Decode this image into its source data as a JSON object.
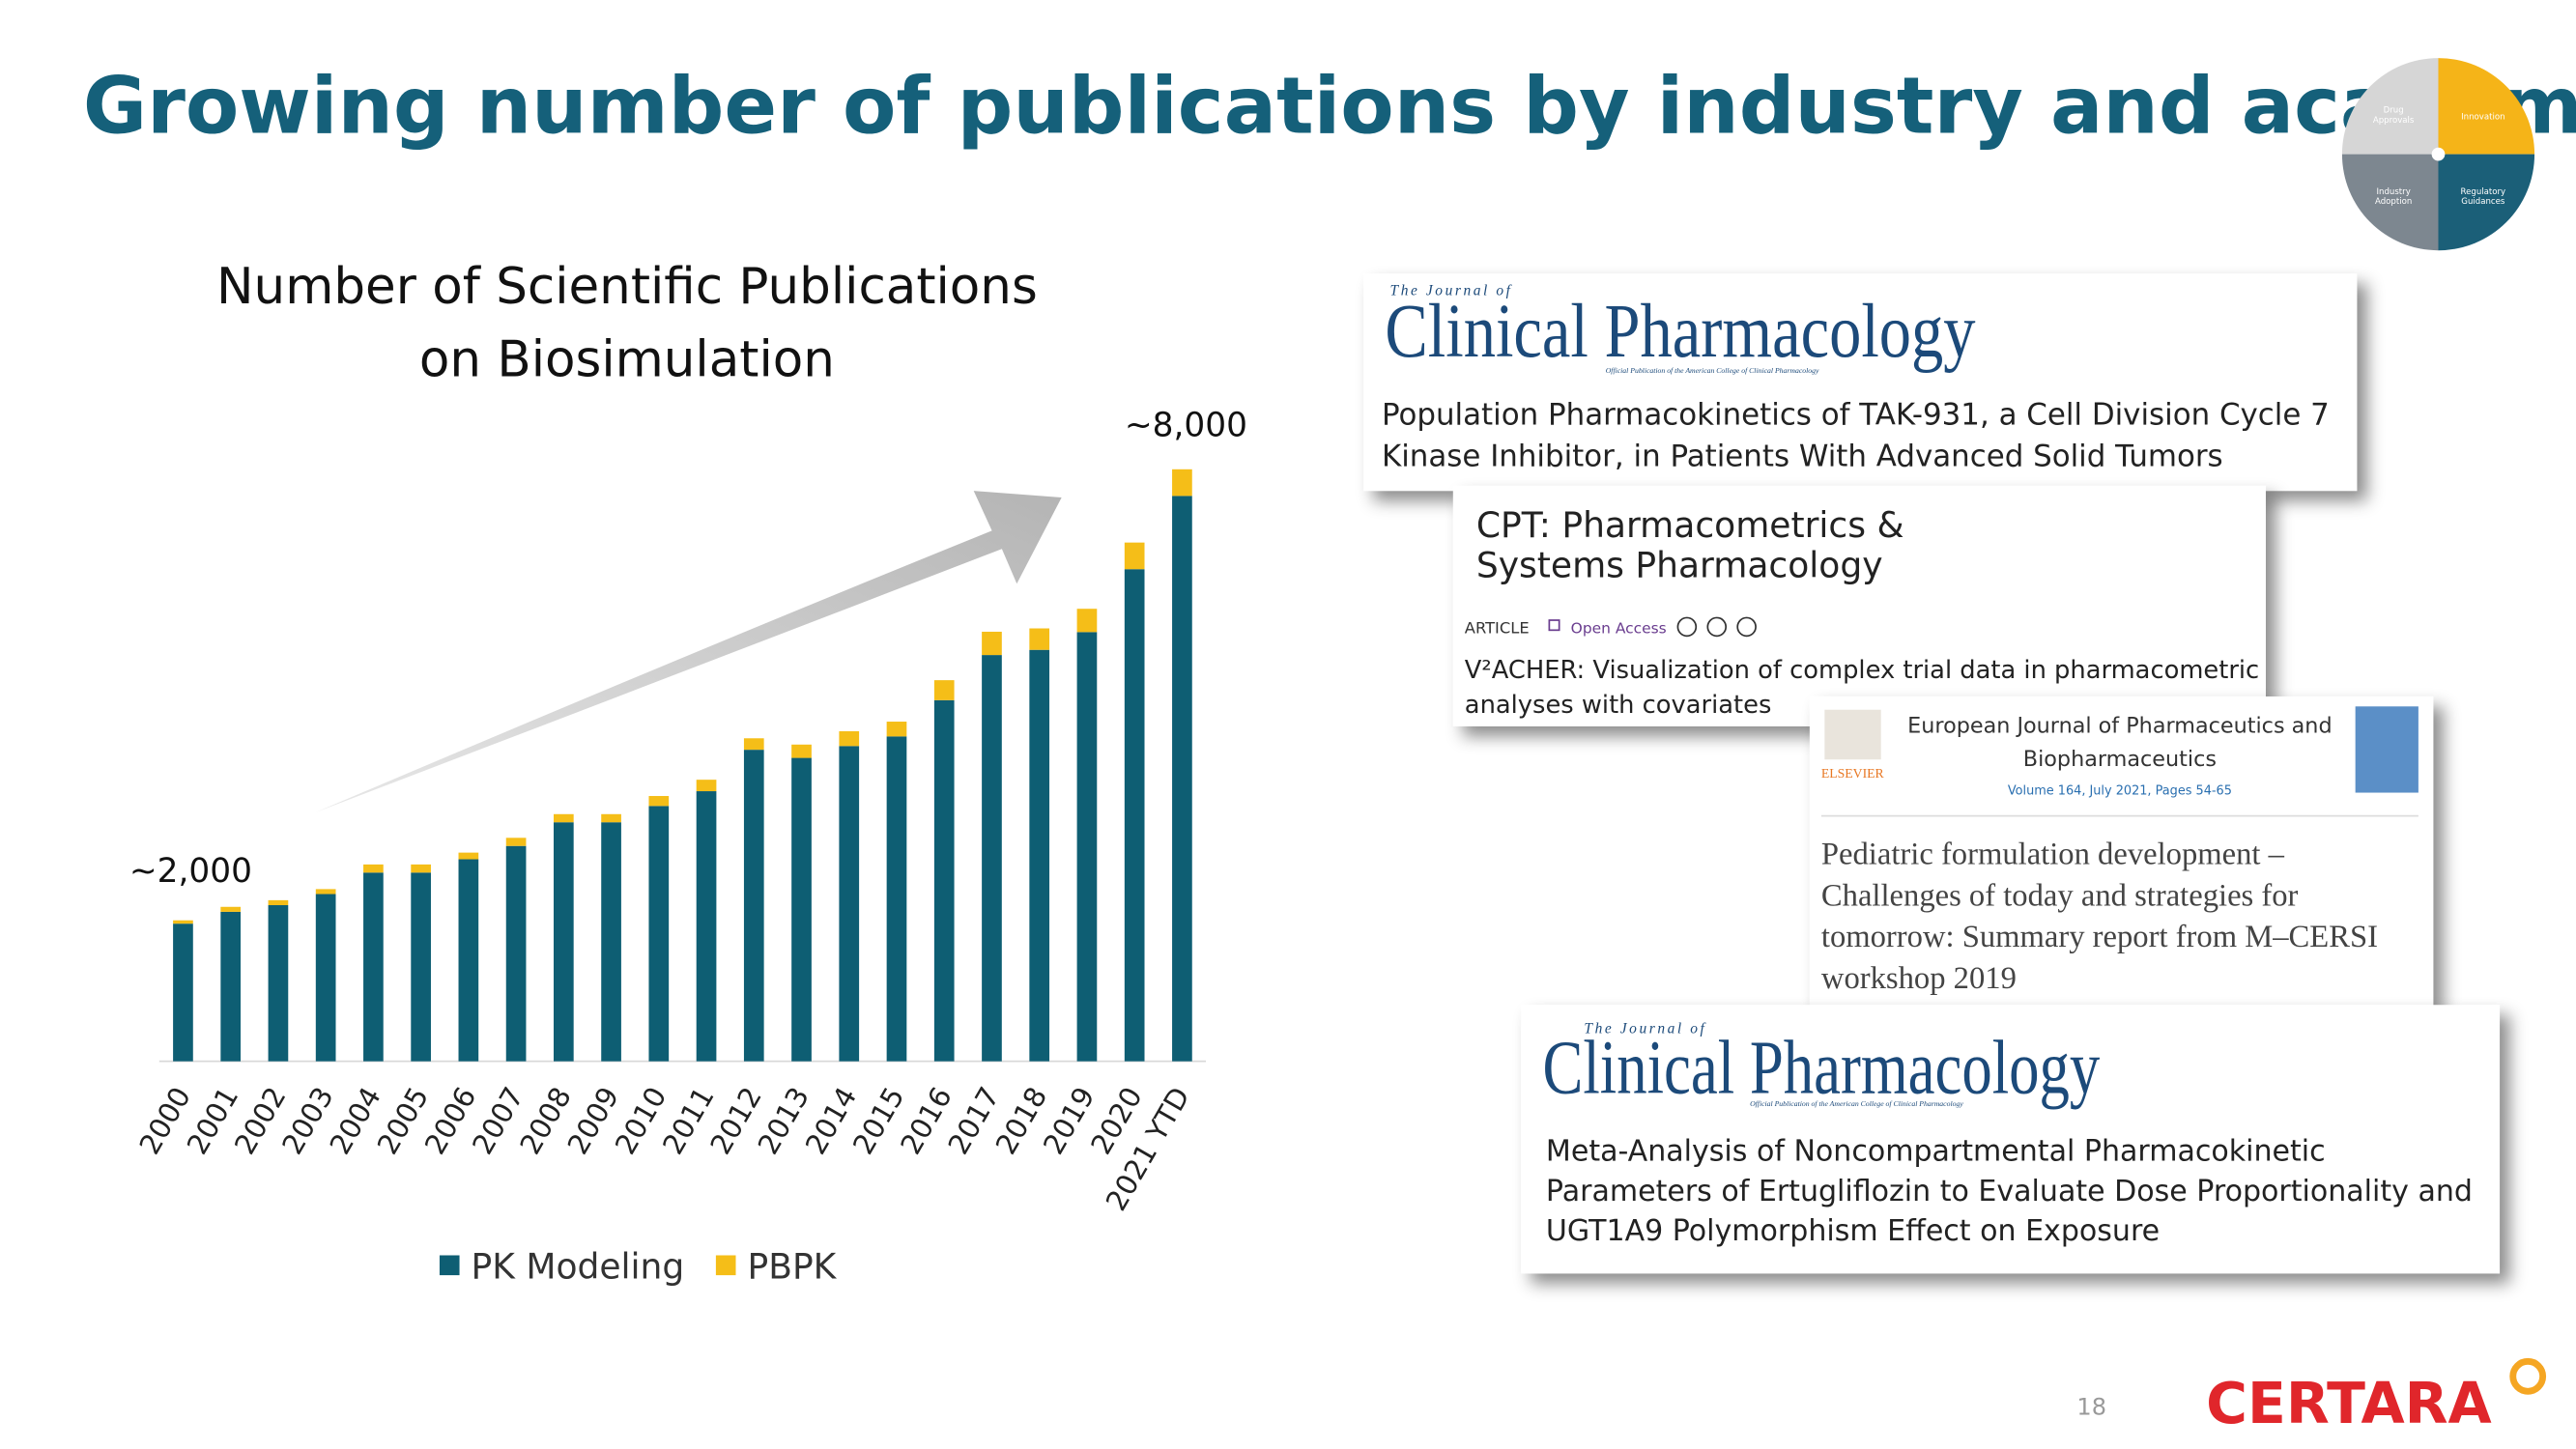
{
  "header": {
    "title": "Growing number of publications by industry and academia"
  },
  "logo": {
    "segments": [
      [
        "Drug",
        "Approvals"
      ],
      [
        "Innovation"
      ],
      [
        "Industry",
        "Adoption"
      ],
      [
        "Regulatory",
        "Guidances"
      ]
    ]
  },
  "chart_data": {
    "type": "bar",
    "stacked": true,
    "title": [
      "Number of Scientific Publications",
      "on Biosimulation"
    ],
    "annotations": [
      "~2,000",
      "~8,000"
    ],
    "categories": [
      "2000",
      "2001",
      "2002",
      "2003",
      "2004",
      "2005",
      "2006",
      "2007",
      "2008",
      "2009",
      "2010",
      "2011",
      "2012",
      "2013",
      "2014",
      "2015",
      "2016",
      "2017",
      "2018",
      "2019",
      "2020",
      "2021 YTD"
    ],
    "series": [
      {
        "name": "PK Modeling",
        "color": "#0e5e73",
        "values": [
          1860,
          2020,
          2110,
          2260,
          2550,
          2550,
          2730,
          2910,
          3230,
          3230,
          3450,
          3650,
          4210,
          4100,
          4260,
          4390,
          4880,
          5490,
          5560,
          5800,
          6650,
          7640
        ]
      },
      {
        "name": "PBPK",
        "color": "#f5be18",
        "values": [
          45,
          67,
          67,
          67,
          110,
          110,
          90,
          110,
          110,
          110,
          135,
          155,
          155,
          180,
          200,
          200,
          270,
          315,
          290,
          315,
          360,
          360
        ]
      }
    ],
    "legend": "bottom"
  },
  "cards": [
    {
      "journal": {
        "small": "The Journal of",
        "name": "Clinical Pharmacology",
        "tagline": "Official Publication of the American College of Clinical Pharmacology"
      },
      "title": [
        "Population Pharmacokinetics of TAK-931, a Cell Division Cycle 7",
        "Kinase Inhibitor, in Patients With Advanced Solid Tumors"
      ]
    },
    {
      "journal": {
        "name": [
          "CPT: Pharmacometrics &",
          "Systems Pharmacology"
        ],
        "type": "ARTICLE",
        "access": "Open Access"
      },
      "title": [
        "V²ACHER: Visualization of complex trial data in pharmacometric",
        "analyses with covariates"
      ]
    },
    {
      "journal": {
        "publisher": "ELSEVIER",
        "name": [
          "European Journal of Pharmaceutics and",
          "Biopharmaceutics"
        ],
        "volume": "Volume 164, July 2021, Pages 54-65"
      },
      "title": [
        "Pediatric formulation development –",
        "Challenges of today and strategies for",
        "tomorrow: Summary report from M–CERSI",
        "workshop 2019"
      ]
    },
    {
      "journal": {
        "small": "The Journal of",
        "name": "Clinical Pharmacology",
        "tagline": "Official Publication of the American College of Clinical Pharmacology"
      },
      "title": [
        "Meta-Analysis of Noncompartmental Pharmacokinetic",
        "Parameters of Ertugliflozin to Evaluate Dose Proportionality and",
        "UGT1A9 Polymorphism Effect on Exposure"
      ]
    }
  ],
  "footer": {
    "page": "18",
    "brand": "CERTARA"
  }
}
